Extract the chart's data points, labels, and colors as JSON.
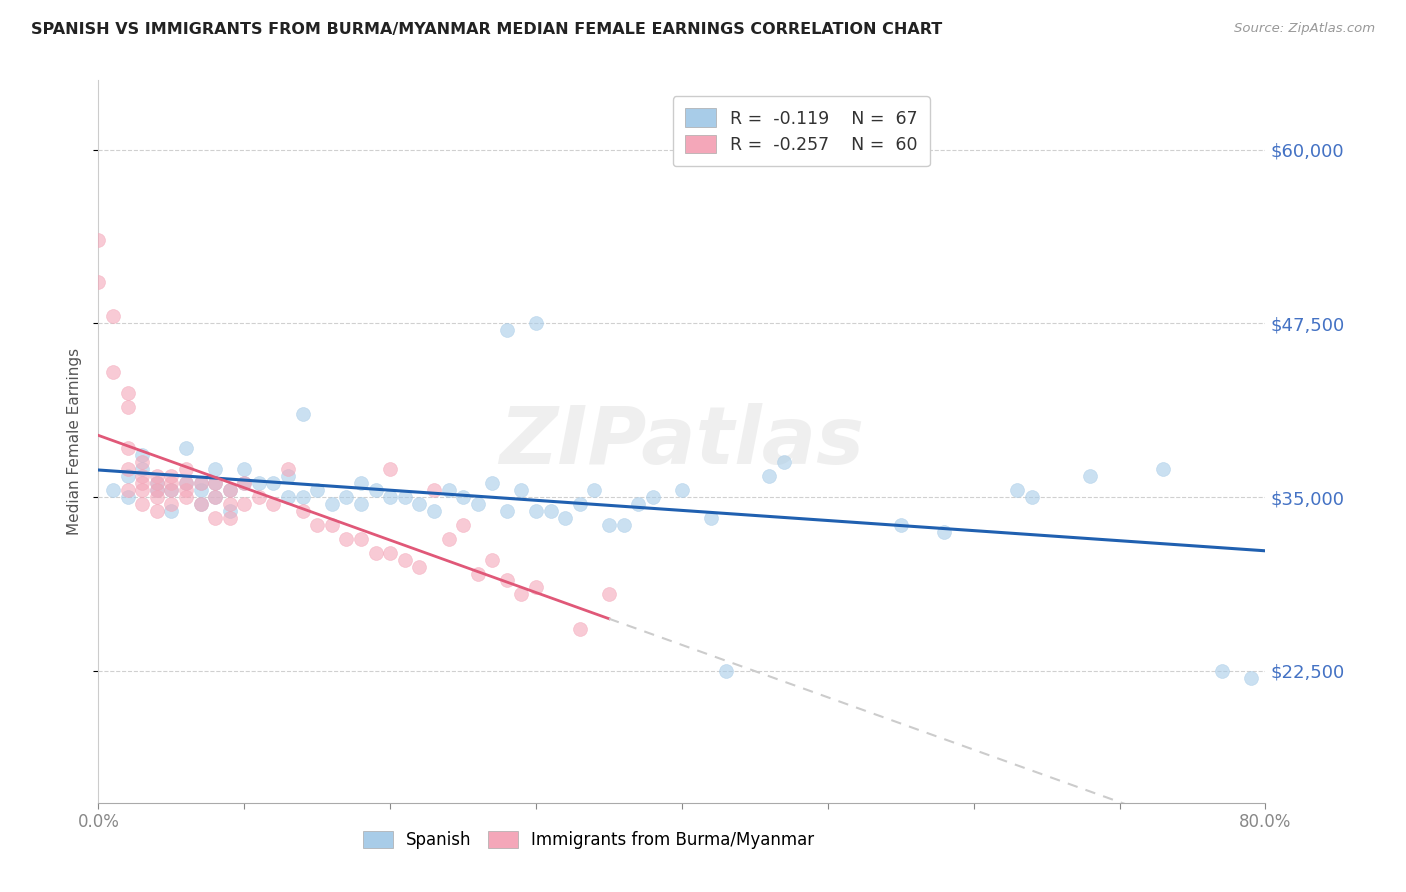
{
  "title": "SPANISH VS IMMIGRANTS FROM BURMA/MYANMAR MEDIAN FEMALE EARNINGS CORRELATION CHART",
  "source": "Source: ZipAtlas.com",
  "ylabel": "Median Female Earnings",
  "xlim": [
    0.0,
    0.8
  ],
  "ylim": [
    13000,
    65000
  ],
  "yticks": [
    22500,
    35000,
    47500,
    60000
  ],
  "ytick_labels": [
    "$22,500",
    "$35,000",
    "$47,500",
    "$60,000"
  ],
  "xticks": [
    0.0,
    0.1,
    0.2,
    0.3,
    0.4,
    0.5,
    0.6,
    0.7,
    0.8
  ],
  "xtick_labels": [
    "0.0%",
    "",
    "",
    "",
    "",
    "",
    "",
    "",
    "80.0%"
  ],
  "legend_r_blue": "R =  -0.119",
  "legend_n_blue": "N =  67",
  "legend_r_pink": "R =  -0.257",
  "legend_n_pink": "N =  60",
  "blue_color": "#a8cce8",
  "pink_color": "#f4a7b9",
  "trendline_blue": "#2060b0",
  "trendline_pink": "#e05878",
  "watermark": "ZIPatlas",
  "blue_scatter_x": [
    0.01,
    0.02,
    0.02,
    0.03,
    0.03,
    0.04,
    0.04,
    0.05,
    0.05,
    0.06,
    0.06,
    0.07,
    0.07,
    0.07,
    0.08,
    0.08,
    0.08,
    0.09,
    0.09,
    0.1,
    0.1,
    0.11,
    0.12,
    0.13,
    0.13,
    0.14,
    0.14,
    0.15,
    0.16,
    0.17,
    0.18,
    0.18,
    0.19,
    0.2,
    0.21,
    0.22,
    0.23,
    0.24,
    0.25,
    0.26,
    0.27,
    0.28,
    0.29,
    0.3,
    0.3,
    0.31,
    0.32,
    0.33,
    0.34,
    0.35,
    0.36,
    0.37,
    0.38,
    0.4,
    0.42,
    0.43,
    0.46,
    0.47,
    0.55,
    0.58,
    0.63,
    0.64,
    0.68,
    0.73,
    0.77,
    0.79,
    0.28
  ],
  "blue_scatter_y": [
    35500,
    36500,
    35000,
    38000,
    37000,
    36000,
    35500,
    35500,
    34000,
    38500,
    36000,
    36000,
    35500,
    34500,
    37000,
    36000,
    35000,
    35500,
    34000,
    37000,
    36000,
    36000,
    36000,
    36500,
    35000,
    41000,
    35000,
    35500,
    34500,
    35000,
    34500,
    36000,
    35500,
    35000,
    35000,
    34500,
    34000,
    35500,
    35000,
    34500,
    36000,
    34000,
    35500,
    34000,
    47500,
    34000,
    33500,
    34500,
    35500,
    33000,
    33000,
    34500,
    35000,
    35500,
    33500,
    22500,
    36500,
    37500,
    33000,
    32500,
    35500,
    35000,
    36500,
    37000,
    22500,
    22000,
    47000
  ],
  "pink_scatter_x": [
    0.0,
    0.0,
    0.01,
    0.01,
    0.02,
    0.02,
    0.02,
    0.02,
    0.02,
    0.03,
    0.03,
    0.03,
    0.03,
    0.03,
    0.04,
    0.04,
    0.04,
    0.04,
    0.04,
    0.05,
    0.05,
    0.05,
    0.05,
    0.06,
    0.06,
    0.06,
    0.06,
    0.07,
    0.07,
    0.08,
    0.08,
    0.08,
    0.09,
    0.09,
    0.09,
    0.1,
    0.1,
    0.11,
    0.12,
    0.13,
    0.14,
    0.15,
    0.16,
    0.17,
    0.18,
    0.19,
    0.2,
    0.2,
    0.21,
    0.22,
    0.23,
    0.24,
    0.25,
    0.26,
    0.27,
    0.28,
    0.29,
    0.3,
    0.33,
    0.35
  ],
  "pink_scatter_y": [
    50500,
    53500,
    48000,
    44000,
    42500,
    41500,
    38500,
    37000,
    35500,
    37500,
    36500,
    36000,
    35500,
    34500,
    36500,
    36000,
    35500,
    35000,
    34000,
    36500,
    36000,
    35500,
    34500,
    37000,
    36000,
    35500,
    35000,
    36000,
    34500,
    36000,
    35000,
    33500,
    35500,
    34500,
    33500,
    36000,
    34500,
    35000,
    34500,
    37000,
    34000,
    33000,
    33000,
    32000,
    32000,
    31000,
    37000,
    31000,
    30500,
    30000,
    35500,
    32000,
    33000,
    29500,
    30500,
    29000,
    28000,
    28500,
    25500,
    28000
  ]
}
